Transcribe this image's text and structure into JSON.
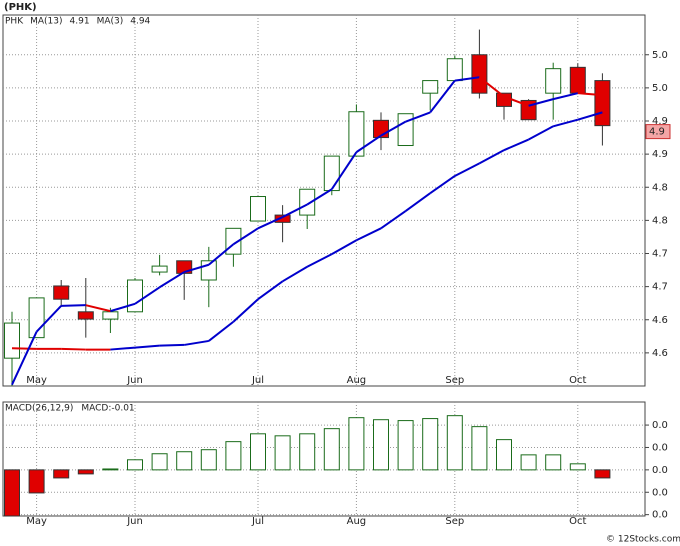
{
  "watermark": "© 12Stocks.com",
  "chart_data": [
    {
      "type": "candlestick",
      "title": "(PHK)",
      "name": "PHK",
      "categories": [
        null,
        "May",
        null,
        null,
        null,
        "Jun",
        null,
        null,
        null,
        null,
        "Jul",
        null,
        null,
        null,
        "Aug",
        null,
        null,
        null,
        "Sep",
        null,
        null,
        null,
        null,
        "Oct",
        null
      ],
      "open": [
        4.542,
        4.573,
        4.651,
        4.612,
        4.601,
        4.612,
        4.672,
        4.689,
        4.66,
        4.699,
        4.749,
        4.758,
        4.758,
        4.795,
        4.847,
        4.901,
        4.863,
        4.942,
        4.961,
        5.0,
        4.942,
        4.931,
        4.942,
        4.981,
        4.961
      ],
      "high": [
        4.612,
        4.633,
        4.66,
        4.663,
        4.618,
        4.663,
        4.698,
        4.689,
        4.71,
        4.738,
        4.786,
        4.773,
        4.797,
        4.847,
        4.925,
        4.913,
        4.911,
        4.961,
        4.999,
        5.038,
        4.942,
        4.933,
        4.988,
        4.987,
        4.972
      ],
      "low": [
        4.5,
        4.573,
        4.621,
        4.573,
        4.58,
        4.612,
        4.667,
        4.63,
        4.619,
        4.68,
        4.749,
        4.717,
        4.737,
        4.788,
        4.847,
        4.856,
        4.863,
        4.916,
        4.961,
        4.934,
        4.902,
        4.902,
        4.902,
        4.942,
        4.863
      ],
      "close": [
        4.595,
        4.633,
        4.631,
        4.601,
        4.612,
        4.66,
        4.681,
        4.67,
        4.689,
        4.738,
        4.786,
        4.747,
        4.797,
        4.847,
        4.914,
        4.875,
        4.911,
        4.961,
        4.994,
        4.942,
        4.922,
        4.902,
        4.979,
        4.942,
        4.893
      ],
      "up_color": "#1a6b1a",
      "down_color": "#e00000",
      "series": [
        {
          "name": "MA(13)",
          "label": "4.91",
          "color": "#0000cc",
          "down_color": "#e00000",
          "values": [
            4.557,
            4.556,
            4.556,
            4.555,
            4.555,
            4.558,
            4.561,
            4.562,
            4.568,
            4.597,
            4.631,
            4.658,
            4.68,
            4.699,
            4.72,
            4.738,
            4.764,
            4.791,
            4.817,
            4.836,
            4.856,
            4.872,
            4.892,
            4.902,
            4.913
          ]
        },
        {
          "name": "MA(3)",
          "label": "4.94",
          "color": "#0000cc",
          "down_color": "#e00000",
          "values": [
            4.502,
            4.582,
            4.621,
            4.622,
            4.613,
            4.624,
            4.649,
            4.672,
            4.683,
            4.714,
            4.738,
            4.755,
            4.774,
            4.797,
            4.853,
            4.878,
            4.899,
            4.913,
            4.961,
            4.966,
            4.937,
            4.923,
            4.933,
            4.942,
            4.939
          ]
        }
      ],
      "last_price": {
        "value": 4.884,
        "label": "4.9"
      },
      "ylim": [
        4.5,
        5.06
      ],
      "yticks": [
        {
          "value": 4.55,
          "label": "4.6"
        },
        {
          "value": 4.6,
          "label": "4.6"
        },
        {
          "value": 4.65,
          "label": "4.7"
        },
        {
          "value": 4.7,
          "label": "4.7"
        },
        {
          "value": 4.75,
          "label": "4.8"
        },
        {
          "value": 4.8,
          "label": "4.8"
        },
        {
          "value": 4.85,
          "label": "4.9"
        },
        {
          "value": 4.9,
          "label": "4.9"
        },
        {
          "value": 4.95,
          "label": "5.0"
        },
        {
          "value": 5.0,
          "label": "5.0"
        }
      ],
      "grid": true
    },
    {
      "type": "bar",
      "title": "MACD(26,12,9)",
      "subtitle": "MACD:-0.01",
      "categories": [
        null,
        "May",
        null,
        null,
        null,
        "Jun",
        null,
        null,
        null,
        null,
        "Jul",
        null,
        null,
        null,
        "Aug",
        null,
        null,
        null,
        "Sep",
        null,
        null,
        null,
        null,
        "Oct",
        null
      ],
      "values": [
        -0.0206,
        -0.0103,
        -0.0036,
        -0.0018,
        0.0004,
        0.0045,
        0.0072,
        0.0081,
        0.009,
        0.0126,
        0.0161,
        0.0152,
        0.0161,
        0.0184,
        0.0233,
        0.0224,
        0.022,
        0.0229,
        0.0242,
        0.0193,
        0.0135,
        0.0067,
        0.0067,
        0.0027,
        -0.0036
      ],
      "up_color": "#1a6b1a",
      "down_color": "#e00000",
      "ylim": [
        -0.0206,
        0.0303
      ],
      "yticks": [
        {
          "value": 0.02,
          "label": "0.0"
        },
        {
          "value": 0.01,
          "label": "0.0"
        },
        {
          "value": 0,
          "label": "0.0"
        },
        {
          "value": -0.01,
          "label": "0.0"
        },
        {
          "value": -0.02,
          "label": "0.0"
        }
      ],
      "grid": true
    }
  ]
}
